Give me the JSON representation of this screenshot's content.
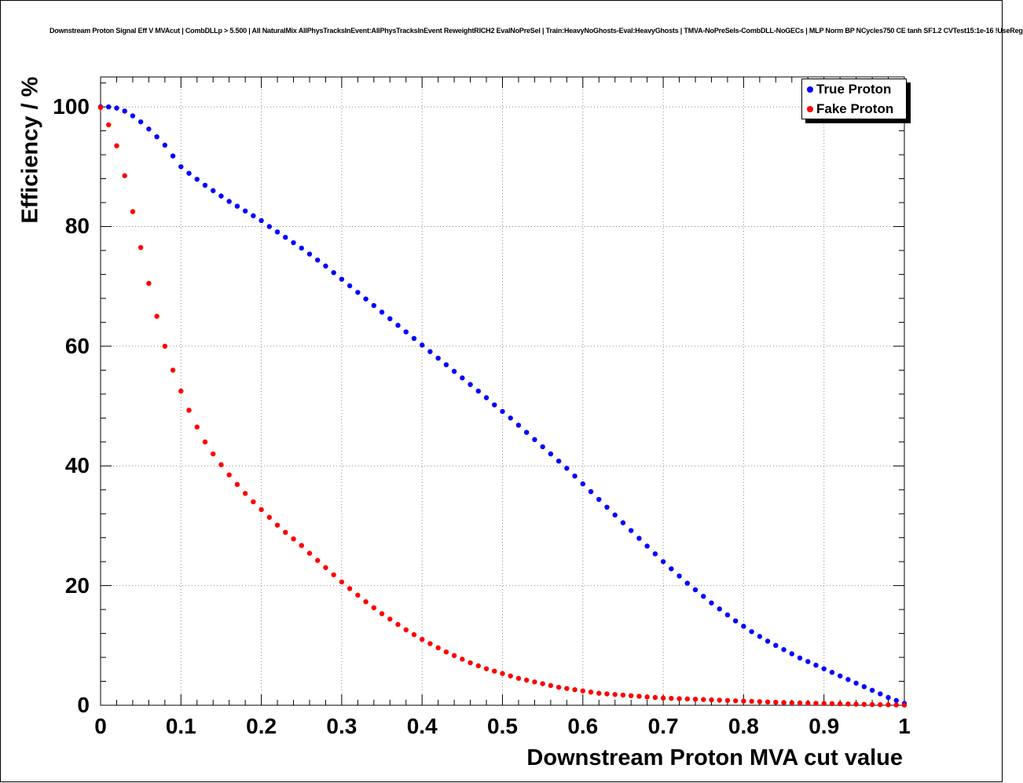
{
  "header": {
    "title": "Downstream Proton Signal Eff V MVAcut | CombDLLp > 5.500 | All NaturalMix AllPhysTracksInEvent:AllPhysTracksInEvent ReweightRICH2 EvalNoPreSel | Train:HeavyNoGhosts-Eval:HeavyGhosts | TMVA-NoPreSels-CombDLL-NoGECs | MLP Norm BP NCycles750 CE tanh SF1.2 CVTest15:1e-16 !UseReg"
  },
  "axes": {
    "x_title": "Downstream Proton MVA cut value",
    "y_title": "Efficiency / %",
    "x_tick_values": [
      0,
      0.1,
      0.2,
      0.3,
      0.4,
      0.5,
      0.6,
      0.7,
      0.8,
      0.9,
      1
    ],
    "x_tick_labels": [
      "0",
      "0.1",
      "0.2",
      "0.3",
      "0.4",
      "0.5",
      "0.6",
      "0.7",
      "0.8",
      "0.9",
      "1"
    ],
    "y_tick_values": [
      0,
      20,
      40,
      60,
      80,
      100
    ],
    "y_tick_labels": [
      "0",
      "20",
      "40",
      "60",
      "80",
      "100"
    ]
  },
  "legend": {
    "items": [
      {
        "label": "True Proton",
        "color": "#0000ff",
        "marker": "dot-icon"
      },
      {
        "label": "Fake Proton",
        "color": "#ff0000",
        "marker": "dot-icon"
      }
    ]
  },
  "colors": {
    "true_proton": "#0000ff",
    "fake_proton": "#ff0000",
    "grid": "#888888",
    "frame": "#000000"
  },
  "chart_data": {
    "type": "scatter",
    "title": "Downstream Proton Signal Eff V MVAcut",
    "xlabel": "Downstream Proton MVA cut value",
    "ylabel": "Efficiency / %",
    "xlim": [
      0,
      1
    ],
    "ylim": [
      0,
      105
    ],
    "grid": true,
    "grid_style": "dotted",
    "legend_position": "top-right",
    "marker": "circle",
    "x": [
      0,
      0.01,
      0.02,
      0.03,
      0.04,
      0.05,
      0.06,
      0.07,
      0.08,
      0.09,
      0.1,
      0.11,
      0.12,
      0.13,
      0.14,
      0.15,
      0.16,
      0.17,
      0.18,
      0.19,
      0.2,
      0.21,
      0.22,
      0.23,
      0.24,
      0.25,
      0.26,
      0.27,
      0.28,
      0.29,
      0.3,
      0.31,
      0.32,
      0.33,
      0.34,
      0.35,
      0.36,
      0.37,
      0.38,
      0.39,
      0.4,
      0.41,
      0.42,
      0.43,
      0.44,
      0.45,
      0.46,
      0.47,
      0.48,
      0.49,
      0.5,
      0.51,
      0.52,
      0.53,
      0.54,
      0.55,
      0.56,
      0.57,
      0.58,
      0.59,
      0.6,
      0.61,
      0.62,
      0.63,
      0.64,
      0.65,
      0.66,
      0.67,
      0.68,
      0.69,
      0.7,
      0.71,
      0.72,
      0.73,
      0.74,
      0.75,
      0.76,
      0.77,
      0.78,
      0.79,
      0.8,
      0.81,
      0.82,
      0.83,
      0.84,
      0.85,
      0.86,
      0.87,
      0.88,
      0.89,
      0.9,
      0.91,
      0.92,
      0.93,
      0.94,
      0.95,
      0.96,
      0.97,
      0.98,
      0.99,
      1
    ],
    "series": [
      {
        "name": "True Proton",
        "color": "#0000ff",
        "values": [
          100,
          100,
          99.8,
          99.3,
          98.5,
          97.5,
          96.3,
          95,
          93.6,
          91.8,
          90,
          88.9,
          87.9,
          86.9,
          86,
          85.1,
          84.2,
          83.4,
          82.6,
          81.8,
          81,
          80,
          79.1,
          78.2,
          77.3,
          76.4,
          75.4,
          74.4,
          73.4,
          72.3,
          71.2,
          70.1,
          69,
          67.9,
          66.8,
          65.7,
          64.6,
          63.5,
          62.4,
          61.3,
          60.2,
          59.1,
          58,
          56.9,
          55.8,
          54.7,
          53.6,
          52.5,
          51.4,
          50.2,
          49.1,
          48,
          46.8,
          45.6,
          44.4,
          43.2,
          42,
          40.8,
          39.6,
          38.3,
          37,
          35.7,
          34.4,
          33.1,
          31.8,
          30.5,
          29.2,
          27.9,
          26.6,
          25.3,
          24,
          22.8,
          21.6,
          20.4,
          19.3,
          18.2,
          17.1,
          16.1,
          15.1,
          14.1,
          13.2,
          12.3,
          11.5,
          10.7,
          10,
          9.3,
          8.6,
          7.9,
          7.3,
          6.7,
          6.1,
          5.5,
          4.9,
          4.3,
          3.7,
          3.1,
          2.5,
          1.9,
          1.3,
          0.8,
          0.3
        ]
      },
      {
        "name": "Fake Proton",
        "color": "#ff0000",
        "values": [
          99.9,
          97,
          93.5,
          88.5,
          82.5,
          76.5,
          70.5,
          65,
          60,
          56,
          52.5,
          49.3,
          46.5,
          44,
          42,
          40.2,
          38.5,
          36.9,
          35.4,
          34,
          32.7,
          31.4,
          30.1,
          28.9,
          27.8,
          26.7,
          25.4,
          24.2,
          23,
          21.8,
          20.6,
          19.5,
          18.4,
          17.3,
          16.3,
          15.3,
          14.4,
          13.5,
          12.6,
          11.8,
          11,
          10.3,
          9.6,
          8.9,
          8.3,
          7.7,
          7.1,
          6.6,
          6.1,
          5.7,
          5.3,
          4.9,
          4.5,
          4.2,
          3.9,
          3.6,
          3.3,
          3,
          2.8,
          2.6,
          2.4,
          2.2,
          2,
          1.9,
          1.8,
          1.7,
          1.6,
          1.5,
          1.4,
          1.3,
          1.2,
          1.15,
          1.1,
          1.05,
          1,
          0.95,
          0.9,
          0.85,
          0.8,
          0.75,
          0.7,
          0.65,
          0.6,
          0.55,
          0.5,
          0.45,
          0.4,
          0.38,
          0.35,
          0.32,
          0.3,
          0.27,
          0.24,
          0.21,
          0.18,
          0.15,
          0.12,
          0.1,
          0.08,
          0.05,
          0.03
        ]
      }
    ]
  }
}
